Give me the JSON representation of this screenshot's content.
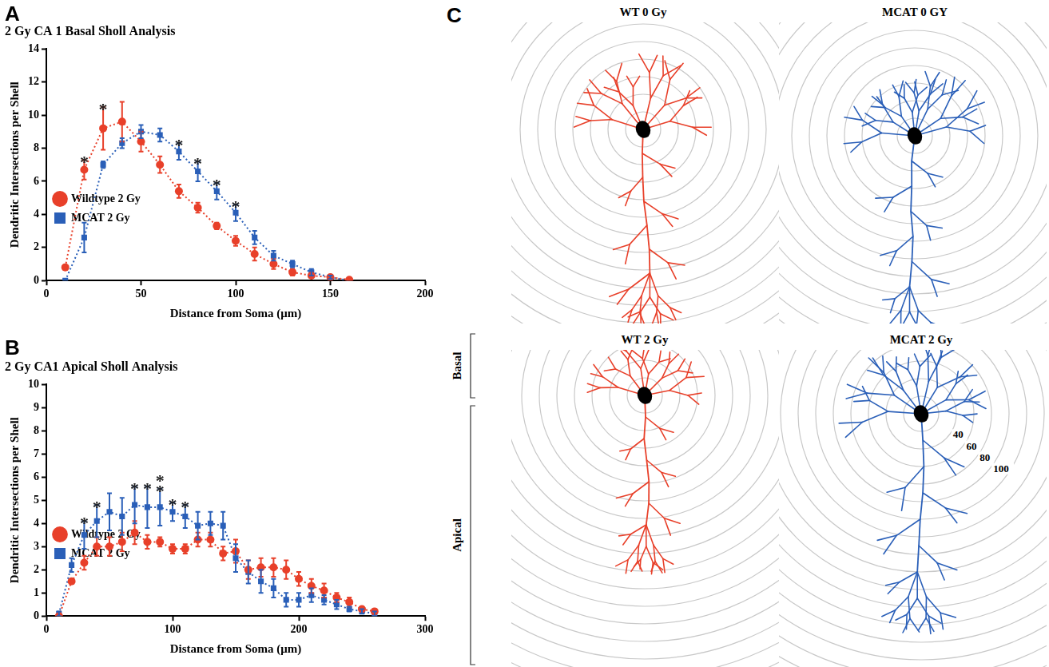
{
  "chart_data": [
    {
      "type": "line",
      "panel": "A",
      "title": "2 Gy CA 1 Basal Sholl Analysis",
      "x_label": "Distance from Soma (μm)",
      "y_label": "Dendritic Intersections per Shell",
      "x": [
        10,
        20,
        30,
        40,
        50,
        60,
        70,
        80,
        90,
        100,
        110,
        120,
        130,
        140,
        150,
        160
      ],
      "series": [
        {
          "name": "Wildtype 2 Gy",
          "color": "#e8402a",
          "marker": "circle",
          "line_style": "dotted",
          "values": [
            0.8,
            6.7,
            9.2,
            9.6,
            8.4,
            7.0,
            5.4,
            4.4,
            3.3,
            2.4,
            1.6,
            1.0,
            0.5,
            0.3,
            0.2,
            0.05
          ],
          "errors": [
            0.1,
            0.6,
            1.3,
            1.2,
            0.6,
            0.5,
            0.4,
            0.3,
            0.2,
            0.3,
            0.4,
            0.3,
            0.2,
            0.1,
            0.1,
            0.05
          ]
        },
        {
          "name": "MCAT 2 Gy",
          "color": "#2a5fb8",
          "marker": "square",
          "line_style": "dotted",
          "values": [
            0.0,
            2.6,
            7.0,
            8.3,
            9.0,
            8.8,
            7.8,
            6.6,
            5.4,
            4.1,
            2.6,
            1.5,
            1.0,
            0.5,
            0.2,
            0.0
          ],
          "errors": [
            0.0,
            0.9,
            0.2,
            0.3,
            0.4,
            0.4,
            0.5,
            0.6,
            0.5,
            0.5,
            0.4,
            0.3,
            0.2,
            0.2,
            0.1,
            0.0
          ]
        }
      ],
      "annotations": [
        {
          "x": 20,
          "text": "*"
        },
        {
          "x": 30,
          "text": "*"
        },
        {
          "x": 70,
          "text": "*"
        },
        {
          "x": 80,
          "text": "*"
        },
        {
          "x": 90,
          "text": "*"
        },
        {
          "x": 100,
          "text": "*"
        }
      ],
      "xlim": [
        0,
        200
      ],
      "xticks": [
        0,
        50,
        100,
        150,
        200
      ],
      "ylim": [
        0,
        14
      ],
      "yticks": [
        0,
        2,
        4,
        6,
        8,
        10,
        12,
        14
      ],
      "grid": false,
      "legend": "upper right"
    },
    {
      "type": "line",
      "panel": "B",
      "title": "2 Gy CA1 Apical Sholl Analysis",
      "x_label": "Distance from Soma (μm)",
      "y_label": "Dendritic Intersections per Shell",
      "x": [
        10,
        20,
        30,
        40,
        50,
        60,
        70,
        80,
        90,
        100,
        110,
        120,
        130,
        140,
        150,
        160,
        170,
        180,
        190,
        200,
        210,
        220,
        230,
        240,
        250,
        260
      ],
      "series": [
        {
          "name": "Wildtype 2 Gy",
          "color": "#e8402a",
          "marker": "circle",
          "line_style": "dotted",
          "values": [
            0.0,
            1.5,
            2.3,
            3.0,
            3.0,
            3.2,
            3.6,
            3.2,
            3.2,
            2.9,
            2.9,
            3.3,
            3.3,
            2.7,
            2.8,
            2.0,
            2.1,
            2.1,
            2.0,
            1.6,
            1.3,
            1.1,
            0.8,
            0.6,
            0.3,
            0.2
          ],
          "errors": [
            0.0,
            0.1,
            0.3,
            0.4,
            0.4,
            0.4,
            0.5,
            0.3,
            0.2,
            0.2,
            0.2,
            0.3,
            0.3,
            0.3,
            0.5,
            0.4,
            0.4,
            0.4,
            0.4,
            0.3,
            0.3,
            0.3,
            0.2,
            0.2,
            0.1,
            0.1
          ]
        },
        {
          "name": "MCAT 2 Gy",
          "color": "#2a5fb8",
          "marker": "square",
          "line_style": "dotted",
          "values": [
            0.1,
            2.2,
            3.5,
            4.1,
            4.5,
            4.3,
            4.8,
            4.7,
            4.7,
            4.5,
            4.3,
            3.9,
            4.0,
            3.9,
            2.5,
            1.9,
            1.5,
            1.2,
            0.7,
            0.7,
            0.9,
            0.7,
            0.5,
            0.3,
            0.2,
            0.1
          ],
          "errors": [
            0.1,
            0.3,
            0.6,
            0.7,
            0.8,
            0.8,
            0.8,
            0.9,
            0.8,
            0.4,
            0.5,
            0.6,
            0.5,
            0.6,
            0.6,
            0.5,
            0.5,
            0.4,
            0.3,
            0.3,
            0.3,
            0.2,
            0.2,
            0.1,
            0.1,
            0.1
          ]
        }
      ],
      "annotations": [
        {
          "x": 30,
          "text": "*"
        },
        {
          "x": 40,
          "text": "*"
        },
        {
          "x": 70,
          "text": "*"
        },
        {
          "x": 80,
          "text": "*"
        },
        {
          "x": 90,
          "text": "*"
        },
        {
          "x": 90,
          "text": "*"
        },
        {
          "x": 100,
          "text": "*"
        },
        {
          "x": 110,
          "text": "*"
        }
      ],
      "xlim": [
        0,
        300
      ],
      "xticks": [
        0,
        100,
        200,
        300
      ],
      "ylim": [
        0,
        10
      ],
      "yticks": [
        0,
        1,
        2,
        3,
        4,
        5,
        6,
        7,
        8,
        9,
        10
      ],
      "grid": false,
      "legend": "upper right"
    }
  ],
  "diagram": {
    "letter": "C",
    "cells": [
      {
        "title": "WT 0 Gy",
        "color": "#e8402a"
      },
      {
        "title": "MCAT 0 GY",
        "color": "#2a5fb8"
      },
      {
        "title": "WT 2 Gy",
        "color": "#e8402a"
      },
      {
        "title": "MCAT 2 Gy",
        "color": "#2a5fb8"
      }
    ],
    "ring_labels": [
      40,
      60,
      80,
      100
    ],
    "regions": [
      "Basal",
      "Apical"
    ]
  }
}
